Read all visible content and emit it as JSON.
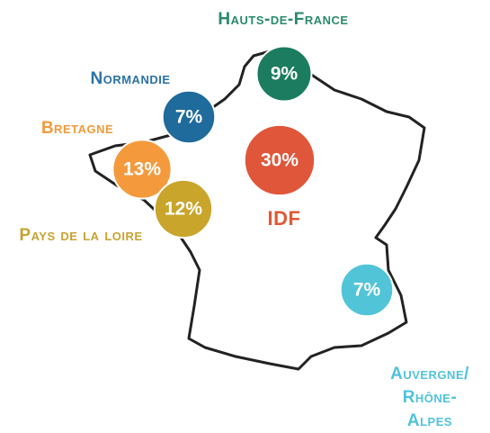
{
  "regions": [
    {
      "name": "Hauts-de-France",
      "value": 9,
      "label": "9%",
      "color": "#1b7c5f",
      "text_color": "#2a8a6c"
    },
    {
      "name": "Normandie",
      "value": 7,
      "label": "7%",
      "color": "#1e6b9c",
      "text_color": "#2a72a6"
    },
    {
      "name": "Bretagne",
      "value": 13,
      "label": "13%",
      "color": "#f59a3c",
      "text_color": "#f29a3a"
    },
    {
      "name": "Pays de la loire",
      "value": 12,
      "label": "12%",
      "color": "#c9a52b",
      "text_color": "#c8a230"
    },
    {
      "name": "IDF",
      "value": 30,
      "label": "30%",
      "color": "#e0563a",
      "text_color": "#e05934"
    },
    {
      "name": "Auvergne/\nRhône-Alpes",
      "value": 7,
      "label": "7%",
      "color": "#52c4d8",
      "text_color": "#4fc3dc"
    }
  ]
}
